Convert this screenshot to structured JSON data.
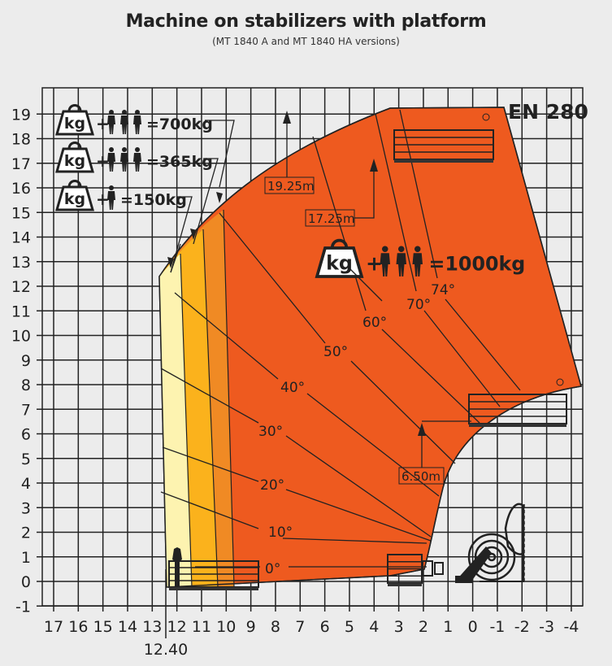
{
  "title": "Machine on stabilizers with platform",
  "subtitle": "(MT 1840 A and MT 1840 HA versions)",
  "standard": "EN 280",
  "x_ticks": [
    "17",
    "16",
    "15",
    "14",
    "13",
    "12",
    "11",
    "10",
    "9",
    "8",
    "7",
    "6",
    "5",
    "4",
    "3",
    "2",
    "1",
    "0",
    "-1",
    "-2",
    "-3",
    "-4"
  ],
  "y_ticks": [
    "19",
    "18",
    "17",
    "16",
    "15",
    "14",
    "13",
    "12",
    "11",
    "10",
    "9",
    "8",
    "7",
    "6",
    "5",
    "4",
    "3",
    "2",
    "1",
    "0",
    "-1"
  ],
  "max_reach_label": "12.40",
  "angles": [
    "0°",
    "10°",
    "20°",
    "30°",
    "40°",
    "50°",
    "60°",
    "70°",
    "74°"
  ],
  "heights": [
    "19.25m",
    "17.25m",
    "6.50m"
  ],
  "kg_icon_text": "kg",
  "loads": [
    {
      "persons": 3,
      "label": "=700kg"
    },
    {
      "persons": 3,
      "label": "=365kg"
    },
    {
      "persons": 1,
      "label": "=150kg"
    },
    {
      "persons": 3,
      "label": "=1000kg"
    }
  ],
  "zone_colors": {
    "150kg": "#fdf3b0",
    "365kg": "#fbb21c",
    "700kg": "#f08a24",
    "1000kg": "#ee5a1f"
  }
}
